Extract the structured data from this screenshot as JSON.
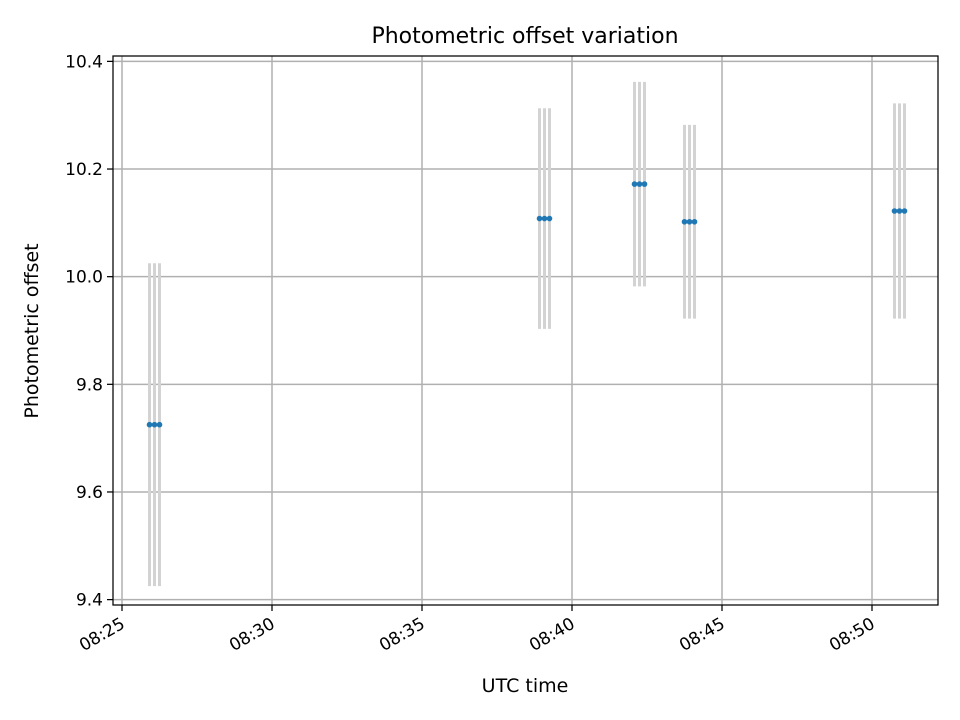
{
  "chart_data": {
    "type": "scatter",
    "title": "Photometric offset variation",
    "xlabel": "UTC time",
    "ylabel": "Photometric offset",
    "grid": true,
    "xlim": [
      "08:24.7",
      "08:52.2"
    ],
    "ylim": [
      9.39,
      10.41
    ],
    "x_ticks": [
      "08:25",
      "08:30",
      "08:35",
      "08:40",
      "08:45",
      "08:50"
    ],
    "y_ticks": [
      "9.4",
      "9.6",
      "9.8",
      "10.0",
      "10.2",
      "10.4"
    ],
    "error_bar_color": "#d3d3d3",
    "marker_color": "#1f77b4",
    "series": [
      {
        "points": [
          {
            "x": "08:25:55",
            "y": 9.725,
            "err": 0.3
          },
          {
            "x": "08:26:05",
            "y": 9.725,
            "err": 0.3
          },
          {
            "x": "08:26:15",
            "y": 9.725,
            "err": 0.3
          },
          {
            "x": "08:38:55",
            "y": 10.108,
            "err": 0.205
          },
          {
            "x": "08:39:05",
            "y": 10.108,
            "err": 0.205
          },
          {
            "x": "08:39:15",
            "y": 10.108,
            "err": 0.205
          },
          {
            "x": "08:42:05",
            "y": 10.172,
            "err": 0.19
          },
          {
            "x": "08:42:15",
            "y": 10.172,
            "err": 0.19
          },
          {
            "x": "08:42:25",
            "y": 10.172,
            "err": 0.19
          },
          {
            "x": "08:43:45",
            "y": 10.102,
            "err": 0.18
          },
          {
            "x": "08:43:55",
            "y": 10.102,
            "err": 0.18
          },
          {
            "x": "08:44:05",
            "y": 10.102,
            "err": 0.18
          },
          {
            "x": "08:50:45",
            "y": 10.122,
            "err": 0.2
          },
          {
            "x": "08:50:55",
            "y": 10.122,
            "err": 0.2
          },
          {
            "x": "08:51:05",
            "y": 10.122,
            "err": 0.2
          }
        ]
      }
    ]
  }
}
